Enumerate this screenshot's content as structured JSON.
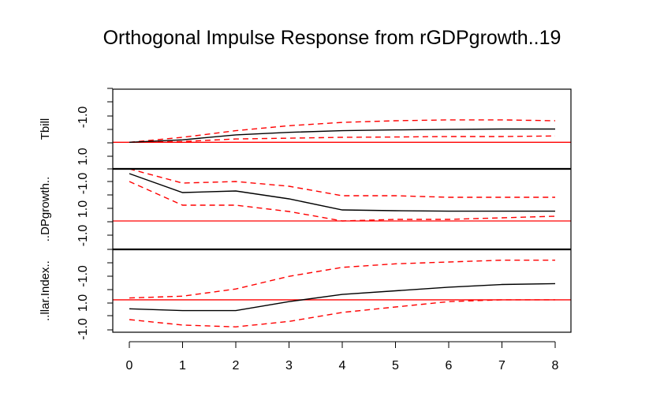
{
  "chart_data": {
    "type": "line",
    "title": "Orthogonal Impulse Response from rGDPgrowth..19",
    "x": [
      0,
      1,
      2,
      3,
      4,
      5,
      6,
      7,
      8
    ],
    "colors": {
      "response": "#000000",
      "ci": "#ff0000",
      "zero": "#ff0000"
    },
    "panels": [
      {
        "ylabel": "Tbill",
        "ytick_labels": [
          "-1.0",
          "1.0"
        ],
        "ylim": [
          -1.6,
          3.2
        ],
        "response": [
          0.0,
          0.15,
          0.45,
          0.6,
          0.7,
          0.75,
          0.78,
          0.8,
          0.8
        ],
        "lower": [
          0.0,
          0.05,
          0.2,
          0.25,
          0.3,
          0.32,
          0.35,
          0.35,
          0.38
        ],
        "upper": [
          0.0,
          0.3,
          0.7,
          1.0,
          1.2,
          1.3,
          1.35,
          1.35,
          1.3
        ]
      },
      {
        "ylabel": "..DPgrowth..",
        "ytick_labels": [
          "-1.0",
          "1.0",
          "-1.0"
        ],
        "ylim": [
          -1.8,
          3.3
        ],
        "response": [
          3.0,
          1.8,
          1.9,
          1.4,
          0.7,
          0.65,
          0.62,
          0.62,
          0.62
        ],
        "lower": [
          2.5,
          1.0,
          1.0,
          0.6,
          0.0,
          0.1,
          0.1,
          0.2,
          0.3
        ],
        "upper": [
          3.3,
          2.4,
          2.5,
          2.2,
          1.6,
          1.6,
          1.5,
          1.5,
          1.5
        ]
      },
      {
        "ylabel": "..llar.Index..",
        "ytick_labels": [
          "-1.0",
          "1.0",
          "-1.0"
        ],
        "ylim": [
          -1.8,
          2.8
        ],
        "response": [
          -0.5,
          -0.6,
          -0.6,
          -0.1,
          0.3,
          0.5,
          0.7,
          0.85,
          0.9
        ],
        "lower": [
          -1.1,
          -1.4,
          -1.5,
          -1.2,
          -0.7,
          -0.4,
          -0.1,
          0.0,
          0.0
        ],
        "upper": [
          0.1,
          0.2,
          0.6,
          1.3,
          1.8,
          2.0,
          2.1,
          2.2,
          2.2
        ]
      }
    ]
  }
}
